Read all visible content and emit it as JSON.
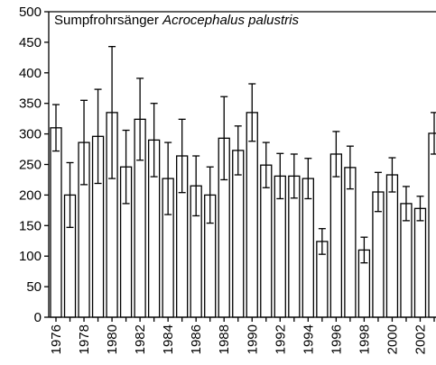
{
  "chart_data": {
    "type": "bar",
    "title": "Sumpfrohrsänger",
    "title_italic": "Acrocephalus palustris",
    "categories": [
      "1976",
      null,
      "1978",
      null,
      "1980",
      null,
      "1982",
      null,
      "1984",
      null,
      "1986",
      null,
      "1988",
      null,
      "1990",
      null,
      "1992",
      null,
      "1994",
      null,
      "1996",
      null,
      "1998",
      null,
      "2000",
      null,
      "2002",
      null
    ],
    "values": [
      310,
      200,
      286,
      296,
      335,
      246,
      324,
      290,
      227,
      264,
      215,
      200,
      293,
      273,
      335,
      249,
      231,
      231,
      227,
      124,
      267,
      245,
      110,
      205,
      233,
      186,
      178,
      301
    ],
    "errors": [
      38,
      53,
      69,
      77,
      108,
      60,
      67,
      60,
      59,
      60,
      49,
      46,
      68,
      40,
      47,
      37,
      37,
      36,
      33,
      21,
      37,
      35,
      21,
      32,
      28,
      28,
      20,
      34
    ],
    "color": "#ffffff",
    "ylim": [
      0,
      500
    ],
    "yticks": [
      0,
      50,
      100,
      150,
      200,
      250,
      300,
      350,
      400,
      450,
      500
    ]
  }
}
